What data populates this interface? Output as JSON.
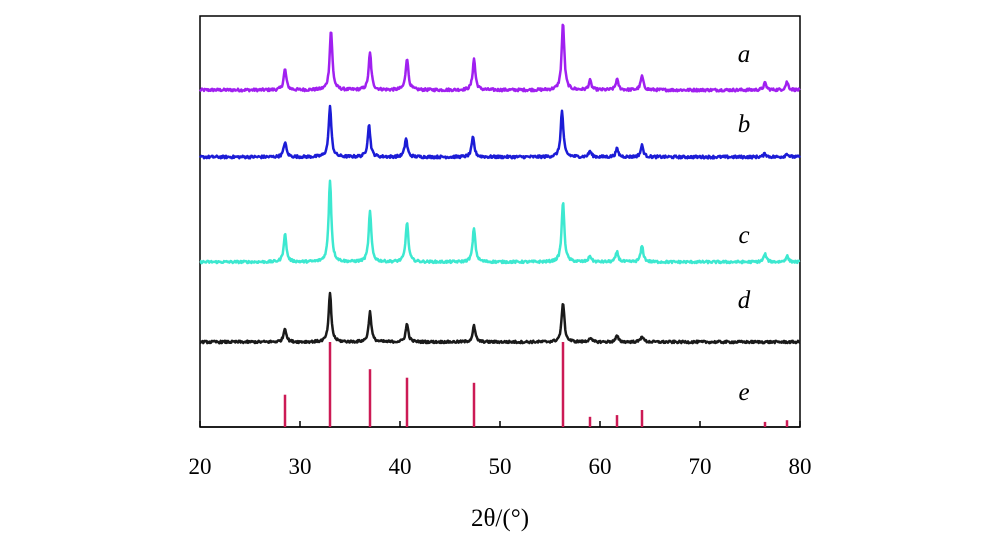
{
  "chart_data": {
    "type": "line",
    "title": "",
    "xlabel": "2θ/(°)",
    "ylabel": "",
    "xlim": [
      20,
      80
    ],
    "xticks": [
      20,
      30,
      40,
      50,
      60,
      70,
      80
    ],
    "grid": false,
    "series": [
      {
        "name": "a",
        "color": "#a020f0",
        "baseline": 0.88,
        "noise": 0.012,
        "peaks": [
          [
            28.5,
            0.18
          ],
          [
            33.1,
            0.52
          ],
          [
            37.0,
            0.32
          ],
          [
            40.7,
            0.28
          ],
          [
            47.4,
            0.27
          ],
          [
            56.3,
            0.58
          ],
          [
            59.0,
            0.08
          ],
          [
            61.7,
            0.09
          ],
          [
            64.2,
            0.12
          ],
          [
            76.5,
            0.06
          ],
          [
            78.7,
            0.07
          ]
        ]
      },
      {
        "name": "b",
        "color": "#1c1cd6",
        "baseline": 0.88,
        "noise": 0.012,
        "peaks": [
          [
            28.5,
            0.13
          ],
          [
            33.0,
            0.44
          ],
          [
            36.9,
            0.28
          ],
          [
            40.6,
            0.16
          ],
          [
            47.3,
            0.17
          ],
          [
            56.2,
            0.4
          ],
          [
            59.0,
            0.05
          ],
          [
            61.7,
            0.07
          ],
          [
            64.2,
            0.1
          ],
          [
            76.5,
            0.03
          ],
          [
            78.7,
            0.03
          ]
        ]
      },
      {
        "name": "c",
        "color": "#3de8d0",
        "baseline": 0.86,
        "noise": 0.012,
        "peaks": [
          [
            28.5,
            0.28
          ],
          [
            33.0,
            0.82
          ],
          [
            37.0,
            0.5
          ],
          [
            40.7,
            0.4
          ],
          [
            47.4,
            0.34
          ],
          [
            56.3,
            0.6
          ],
          [
            59.0,
            0.06
          ],
          [
            61.7,
            0.1
          ],
          [
            64.2,
            0.16
          ],
          [
            76.5,
            0.08
          ],
          [
            78.7,
            0.06
          ]
        ]
      },
      {
        "name": "d",
        "color": "#1a1a1a",
        "baseline": 0.88,
        "noise": 0.012,
        "peaks": [
          [
            28.5,
            0.14
          ],
          [
            33.0,
            0.48
          ],
          [
            37.0,
            0.3
          ],
          [
            40.7,
            0.18
          ],
          [
            47.4,
            0.16
          ],
          [
            56.3,
            0.4
          ],
          [
            59.0,
            0.04
          ],
          [
            61.7,
            0.06
          ],
          [
            64.2,
            0.06
          ]
        ]
      }
    ],
    "reference": {
      "name": "e",
      "color": "#cc1a55",
      "lines": [
        [
          28.5,
          0.38
        ],
        [
          33.0,
          1.0
        ],
        [
          37.0,
          0.68
        ],
        [
          40.7,
          0.58
        ],
        [
          47.4,
          0.52
        ],
        [
          56.3,
          1.0
        ],
        [
          59.0,
          0.12
        ],
        [
          61.7,
          0.14
        ],
        [
          64.2,
          0.2
        ],
        [
          76.5,
          0.06
        ],
        [
          78.7,
          0.08
        ]
      ]
    }
  }
}
